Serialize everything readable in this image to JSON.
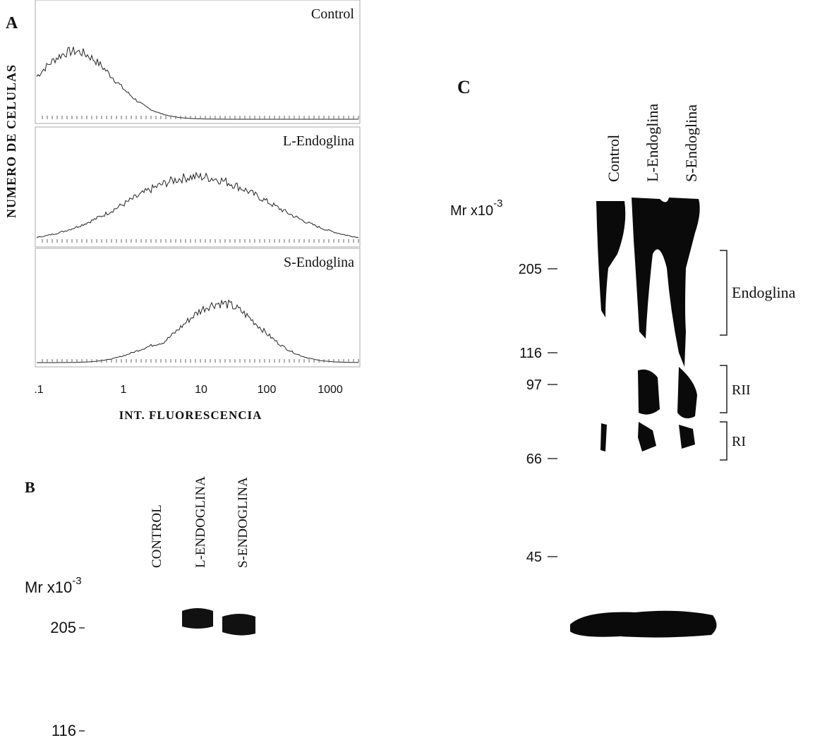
{
  "panel_a": {
    "label": "A",
    "y_axis_label": "NUMERO DE CELULAS",
    "x_axis_label": "INT. FLUORESCENCIA",
    "histograms": [
      "Control",
      "L-Endoglina",
      "S-Endoglina"
    ],
    "x_tick_labels": [
      ".1",
      "1",
      "10",
      "100",
      "1000"
    ]
  },
  "panel_b": {
    "label": "B",
    "mr_label": "Mr x10",
    "mr_exponent": "-3",
    "lanes": [
      "CONTROL",
      "L-ENDOGLINA",
      "S-ENDOGLINA"
    ],
    "markers": [
      "205",
      "116"
    ]
  },
  "panel_c": {
    "label": "C",
    "mr_label": "Mr x10",
    "mr_exponent": "-3",
    "lanes": [
      "Control",
      "L-Endoglina",
      "S-Endoglina"
    ],
    "markers": [
      "205",
      "116",
      "97",
      "66",
      "45"
    ],
    "bands": [
      "Endoglina",
      "RII",
      "RI"
    ]
  }
}
